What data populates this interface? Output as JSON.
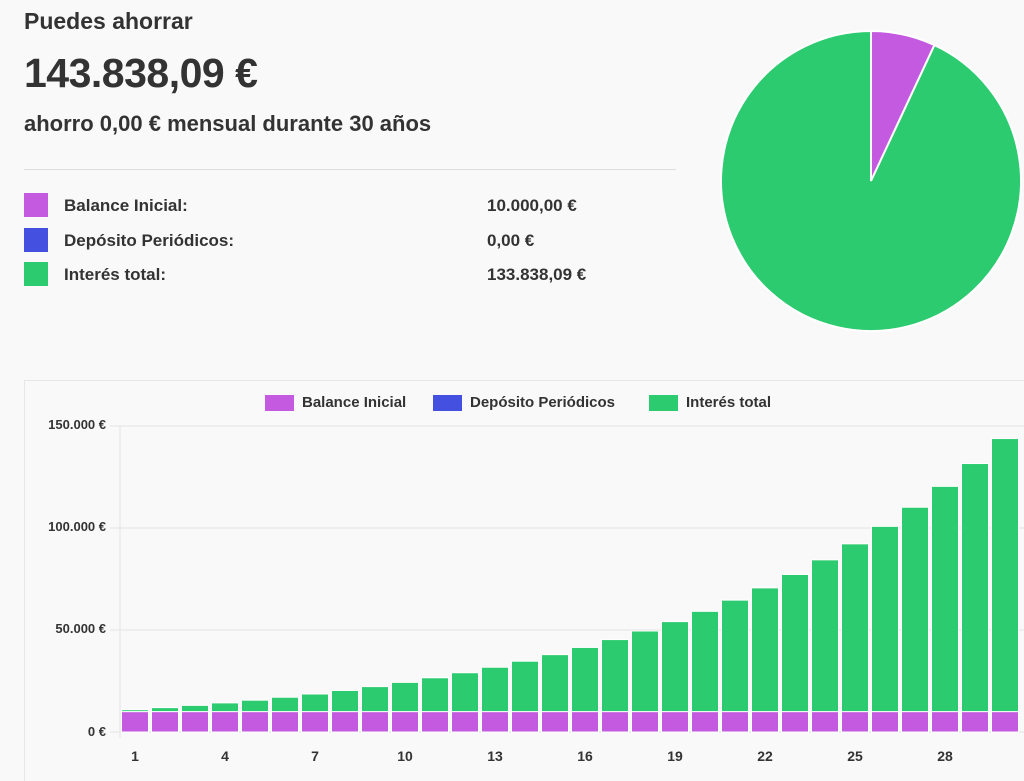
{
  "summary": {
    "subtitle": "Puedes ahorrar",
    "total": "143.838,09 €",
    "description": "ahorro 0,00 € mensual durante 30 años",
    "rows": [
      {
        "label": "Balance Inicial:",
        "value": "10.000,00 €",
        "color": "#c45ae0"
      },
      {
        "label": "Depósito Periódicos:",
        "value": "0,00 €",
        "color": "#4450e0"
      },
      {
        "label": "Interés total:",
        "value": "133.838,09 €",
        "color": "#2ccb6f"
      }
    ]
  },
  "chart_data": [
    {
      "type": "pie",
      "slices": [
        {
          "name": "Balance Inicial",
          "value": 10000.0,
          "color": "#c45ae0"
        },
        {
          "name": "Depósito Periódicos",
          "value": 0.0,
          "color": "#4450e0"
        },
        {
          "name": "Interés total",
          "value": 133838.09,
          "color": "#2ccb6f"
        }
      ]
    },
    {
      "type": "bar",
      "stacked": true,
      "legend": [
        "Balance Inicial",
        "Depósito Periódicos",
        "Interés total"
      ],
      "legend_position": "top",
      "grid": true,
      "ylim": [
        0,
        150000
      ],
      "yticks": [
        "0 €",
        "50.000 €",
        "100.000 €",
        "150.000 €"
      ],
      "ytick_values": [
        0,
        50000,
        100000,
        150000
      ],
      "x": [
        1,
        2,
        3,
        4,
        5,
        6,
        7,
        8,
        9,
        10,
        11,
        12,
        13,
        14,
        15,
        16,
        17,
        18,
        19,
        20,
        21,
        22,
        23,
        24,
        25,
        26,
        27,
        28,
        29,
        30
      ],
      "xticks": [
        "1",
        "4",
        "7",
        "10",
        "13",
        "16",
        "19",
        "22",
        "25",
        "28"
      ],
      "series": [
        {
          "name": "Balance Inicial",
          "color": "#c45ae0",
          "values": [
            10000,
            10000,
            10000,
            10000,
            10000,
            10000,
            10000,
            10000,
            10000,
            10000,
            10000,
            10000,
            10000,
            10000,
            10000,
            10000,
            10000,
            10000,
            10000,
            10000,
            10000,
            10000,
            10000,
            10000,
            10000,
            10000,
            10000,
            10000,
            10000,
            10000
          ]
        },
        {
          "name": "Depósito Periódicos",
          "color": "#4450e0",
          "values": [
            0,
            0,
            0,
            0,
            0,
            0,
            0,
            0,
            0,
            0,
            0,
            0,
            0,
            0,
            0,
            0,
            0,
            0,
            0,
            0,
            0,
            0,
            0,
            0,
            0,
            0,
            0,
            0,
            0,
            0
          ]
        },
        {
          "name": "Interés total",
          "color": "#2ccb6f",
          "values": [
            929,
            1945,
            3055,
            4269,
            5595,
            7044,
            8628,
            10359,
            12252,
            14320,
            16580,
            19050,
            21750,
            24701,
            27926,
            31450,
            35303,
            39513,
            44115,
            49144,
            54641,
            60648,
            67214,
            74390,
            82233,
            90805,
            100174,
            110413,
            121604,
            133838
          ]
        }
      ]
    }
  ]
}
